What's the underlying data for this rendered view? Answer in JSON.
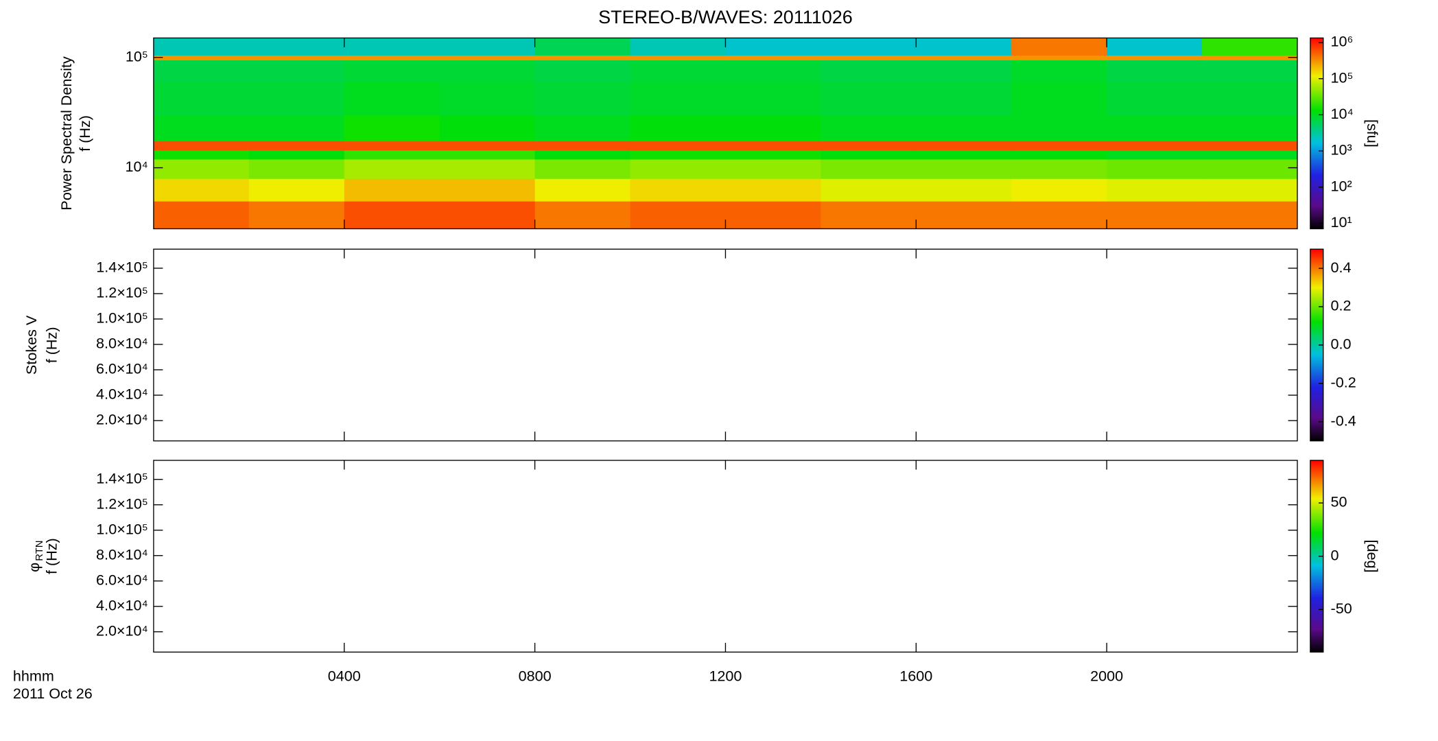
{
  "chart_data": [
    {
      "type": "spectrogram",
      "title": "STEREO-B/WAVES: 20111026",
      "ylabel": "Power Spectral Density",
      "ylabel2": "f (Hz)",
      "ylog": true,
      "ylim": [
        2800,
        150000
      ],
      "yticks": [
        {
          "value": 10000,
          "label": "10⁴"
        },
        {
          "value": 100000,
          "label": "10⁵"
        }
      ],
      "zlog": true,
      "zlim": [
        7,
        1340000
      ],
      "zlabel": "[sfu]",
      "zticks": [
        {
          "value": 10,
          "label": "10¹"
        },
        {
          "value": 100,
          "label": "10²"
        },
        {
          "value": 1000,
          "label": "10³"
        },
        {
          "value": 10000,
          "label": "10⁴"
        },
        {
          "value": 100000,
          "label": "10⁵"
        },
        {
          "value": 1000000,
          "label": "10⁶"
        }
      ],
      "xbins": [
        0,
        2,
        4,
        6,
        8,
        10,
        12,
        14,
        16,
        18,
        20,
        22,
        24
      ],
      "ybins": [
        2500,
        5000,
        8000,
        12000,
        14500,
        17500,
        30000,
        60000,
        95000,
        105000,
        160000
      ],
      "z": [
        [
          500000,
          400000,
          600000,
          600000,
          400000,
          500000,
          500000,
          400000,
          400000,
          400000,
          400000,
          400000
        ],
        [
          150000,
          120000,
          200000,
          200000,
          120000,
          150000,
          150000,
          100000,
          100000,
          120000,
          100000,
          100000
        ],
        [
          50000,
          40000,
          60000,
          60000,
          40000,
          50000,
          50000,
          40000,
          40000,
          40000,
          35000,
          35000
        ],
        [
          15000,
          12000,
          20000,
          20000,
          12000,
          15000,
          15000,
          12000,
          12000,
          12000,
          10000,
          10000
        ],
        [
          600000,
          600000,
          600000,
          600000,
          600000,
          600000,
          600000,
          600000,
          600000,
          600000,
          600000,
          600000
        ],
        [
          10000,
          10000,
          15000,
          12000,
          10000,
          12000,
          12000,
          10000,
          10000,
          10000,
          10000,
          10000
        ],
        [
          8000,
          8000,
          10000,
          9000,
          8000,
          9000,
          9000,
          8000,
          8000,
          10000,
          8000,
          8000
        ],
        [
          7000,
          7000,
          8000,
          8000,
          7000,
          8000,
          8000,
          7000,
          7000,
          9000,
          7000,
          7000
        ],
        [
          300000,
          300000,
          300000,
          300000,
          300000,
          300000,
          300000,
          300000,
          300000,
          300000,
          300000,
          300000
        ],
        [
          2500,
          2500,
          2500,
          2500,
          6000,
          2500,
          2000,
          2000,
          2000,
          400000,
          2000,
          20000
        ]
      ]
    },
    {
      "type": "spectrogram",
      "ylabel": "Stokes V",
      "ylabel2": "f (Hz)",
      "ylim": [
        4000,
        155000
      ],
      "yticks": [
        {
          "value": 20000,
          "label": "2.0×10⁴"
        },
        {
          "value": 40000,
          "label": "4.0×10⁴"
        },
        {
          "value": 60000,
          "label": "6.0×10⁴"
        },
        {
          "value": 80000,
          "label": "8.0×10⁴"
        },
        {
          "value": 100000,
          "label": "1.0×10⁵"
        },
        {
          "value": 120000,
          "label": "1.2×10⁵"
        },
        {
          "value": 140000,
          "label": "1.4×10⁵"
        }
      ],
      "zlim": [
        -0.5,
        0.5
      ],
      "zticks": [
        -0.4,
        -0.2,
        {
          "value": 0,
          "label": "0.0"
        },
        0.2,
        0.4
      ]
    },
    {
      "type": "spectrogram",
      "ylabel_symbol": "φ",
      "ylabel_sub": "RTN",
      "ylabel2": "f (Hz)",
      "ylim": [
        4000,
        155000
      ],
      "yticks": [
        {
          "value": 20000,
          "label": "2.0×10⁴"
        },
        {
          "value": 40000,
          "label": "4.0×10⁴"
        },
        {
          "value": 60000,
          "label": "6.0×10⁴"
        },
        {
          "value": 80000,
          "label": "8.0×10⁴"
        },
        {
          "value": 100000,
          "label": "1.0×10⁵"
        },
        {
          "value": 120000,
          "label": "1.2×10⁵"
        },
        {
          "value": 140000,
          "label": "1.4×10⁵"
        }
      ],
      "zlim": [
        -90,
        90
      ],
      "zlabel": "[deg]",
      "zticks": [
        -50,
        0,
        50
      ],
      "xlim": [
        0,
        24
      ],
      "xticks": [
        {
          "value": 4,
          "label": "0400"
        },
        {
          "value": 8,
          "label": "0800"
        },
        {
          "value": 12,
          "label": "1200"
        },
        {
          "value": 16,
          "label": "1600"
        },
        {
          "value": 20,
          "label": "2000"
        }
      ],
      "xlabel": "hhmm",
      "date": "2011 Oct 26"
    }
  ]
}
